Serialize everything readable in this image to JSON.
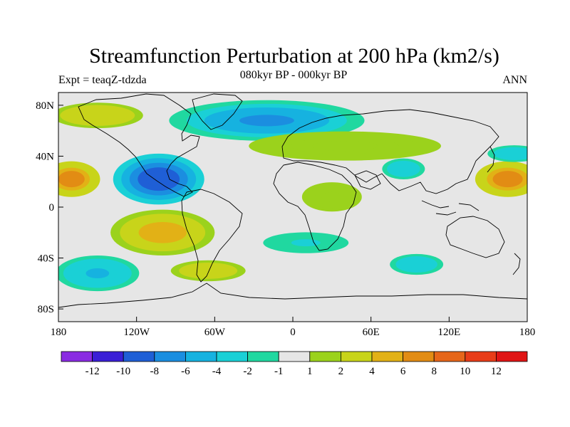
{
  "chart_data": {
    "type": "contour-map",
    "title": "Streamfunction Perturbation at 200 hPa (km2/s)",
    "subtitle_left": "Expt = teaqZ-tdzda",
    "subtitle_center": "080kyr BP - 000kyr BP",
    "subtitle_right": "ANN",
    "x_ticks": [
      "180",
      "120W",
      "60W",
      "0",
      "60E",
      "120E",
      "180"
    ],
    "x_range": [
      -180,
      180
    ],
    "y_ticks": [
      "80N",
      "40N",
      "0",
      "40S",
      "80S"
    ],
    "y_range": [
      -90,
      90
    ],
    "colorbar": {
      "labels": [
        "-12",
        "-10",
        "-8",
        "-6",
        "-4",
        "-2",
        "-1",
        "1",
        "2",
        "4",
        "6",
        "8",
        "10",
        "12"
      ],
      "colors": [
        "#8a2be2",
        "#3a1fd6",
        "#1f5fd6",
        "#1b8ee0",
        "#16b2e0",
        "#1ad0d6",
        "#20d8a0",
        "#e6e6e6",
        "#9bd21c",
        "#c8d41a",
        "#e2b116",
        "#e28c14",
        "#e6661a",
        "#e83c18",
        "#e01414"
      ]
    },
    "features": [
      {
        "name": "anomaly-negative-central-america",
        "lon": -103,
        "lat": 22,
        "rx": 35,
        "ry": 20,
        "value": -9
      },
      {
        "name": "anomaly-negative-north-atlantic",
        "lon": -20,
        "lat": 68,
        "rx": 75,
        "ry": 16,
        "value": -6
      },
      {
        "name": "anomaly-positive-north-pacific-east",
        "lon": -170,
        "lat": 22,
        "rx": 22,
        "ry": 14,
        "value": 7
      },
      {
        "name": "anomaly-positive-north-pacific-west",
        "lon": 165,
        "lat": 22,
        "rx": 25,
        "ry": 14,
        "value": 7
      },
      {
        "name": "anomaly-positive-south-america",
        "lon": -100,
        "lat": -20,
        "rx": 40,
        "ry": 18,
        "value": 5
      },
      {
        "name": "anomaly-positive-south-atlantic",
        "lon": -65,
        "lat": -50,
        "rx": 35,
        "ry": 10,
        "value": 3
      },
      {
        "name": "anomaly-positive-eurasia",
        "lon": 40,
        "lat": 48,
        "rx": 90,
        "ry": 14,
        "value": 2
      },
      {
        "name": "anomaly-positive-alaska",
        "lon": -150,
        "lat": 72,
        "rx": 35,
        "ry": 10,
        "value": 4
      },
      {
        "name": "anomaly-negative-south-pacific",
        "lon": -150,
        "lat": -52,
        "rx": 32,
        "ry": 14,
        "value": -4
      },
      {
        "name": "anomaly-negative-indian-ocean",
        "lon": 95,
        "lat": -45,
        "rx": 25,
        "ry": 10,
        "value": -3
      },
      {
        "name": "anomaly-negative-arabian-sea",
        "lon": 85,
        "lat": 30,
        "rx": 20,
        "ry": 10,
        "value": -3
      },
      {
        "name": "anomaly-negative-south-africa",
        "lon": 10,
        "lat": -28,
        "rx": 40,
        "ry": 10,
        "value": -2
      },
      {
        "name": "anomaly-negative-west-pacific",
        "lon": 170,
        "lat": 42,
        "rx": 25,
        "ry": 8,
        "value": -3
      },
      {
        "name": "anomaly-positive-west-africa",
        "lon": 30,
        "lat": 8,
        "rx": 28,
        "ry": 14,
        "value": 2
      }
    ]
  }
}
